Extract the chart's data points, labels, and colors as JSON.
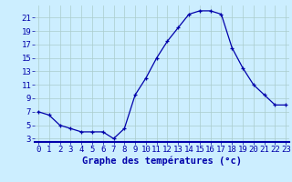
{
  "hours": [
    0,
    1,
    2,
    3,
    4,
    5,
    6,
    7,
    8,
    9,
    10,
    11,
    12,
    13,
    14,
    15,
    16,
    17,
    18,
    19,
    20,
    21,
    22,
    23
  ],
  "temps": [
    7,
    6.5,
    5,
    4.5,
    4,
    4,
    4,
    3,
    4.5,
    9.5,
    12,
    15,
    17.5,
    19.5,
    21.5,
    22,
    22,
    21.5,
    16.5,
    13.5,
    11,
    9.5,
    8,
    8
  ],
  "title": "Graphe des températures (°c)",
  "bg_color": "#cceeff",
  "grid_color": "#aacccc",
  "line_color": "#0000aa",
  "yticks": [
    3,
    5,
    7,
    9,
    11,
    13,
    15,
    17,
    19,
    21
  ],
  "xticks": [
    0,
    1,
    2,
    3,
    4,
    5,
    6,
    7,
    8,
    9,
    10,
    11,
    12,
    13,
    14,
    15,
    16,
    17,
    18,
    19,
    20,
    21,
    22,
    23
  ],
  "xlim": [
    -0.3,
    23.3
  ],
  "ylim": [
    2.5,
    22.8
  ],
  "tick_fontsize": 6.5,
  "xlabel_fontsize": 7.5
}
